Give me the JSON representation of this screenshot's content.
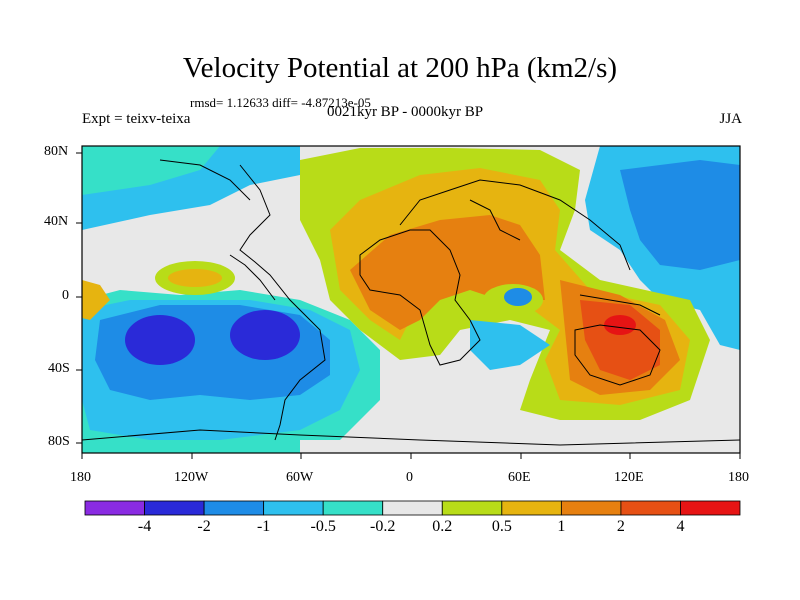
{
  "title": "Velocity Potential at 200 hPa (km2/s)",
  "stats_line": "rmsd= 1.12633 diff= -4.87213e-05",
  "experiment_label": "Expt = teixv-teixa",
  "period_label": "0021kyr BP - 0000kyr BP",
  "season_label": "JJA",
  "lon_ticks": [
    "180",
    "120W",
    "60W",
    "0",
    "60E",
    "120E",
    "180"
  ],
  "lat_ticks": [
    "80N",
    "40N",
    "0",
    "40S",
    "80S"
  ],
  "colorbar": {
    "colors": [
      "#8a2be2",
      "#2a2ad8",
      "#1e8ce6",
      "#2ec0ee",
      "#36e0c8",
      "#e8e8e8",
      "#b8dc18",
      "#e6b410",
      "#e68010",
      "#e65014",
      "#e61414"
    ],
    "labels": [
      "-4",
      "-2",
      "-1",
      "-0.5",
      "-0.2",
      "0.2",
      "0.5",
      "1",
      "2",
      "4"
    ]
  },
  "map_fields": {
    "background_level": "0 to 0.2 / -0.2 to 0",
    "positive_center": "Maritime Continent / Australia (>2)",
    "negative_center": "Southeast Pacific (< -2)"
  }
}
